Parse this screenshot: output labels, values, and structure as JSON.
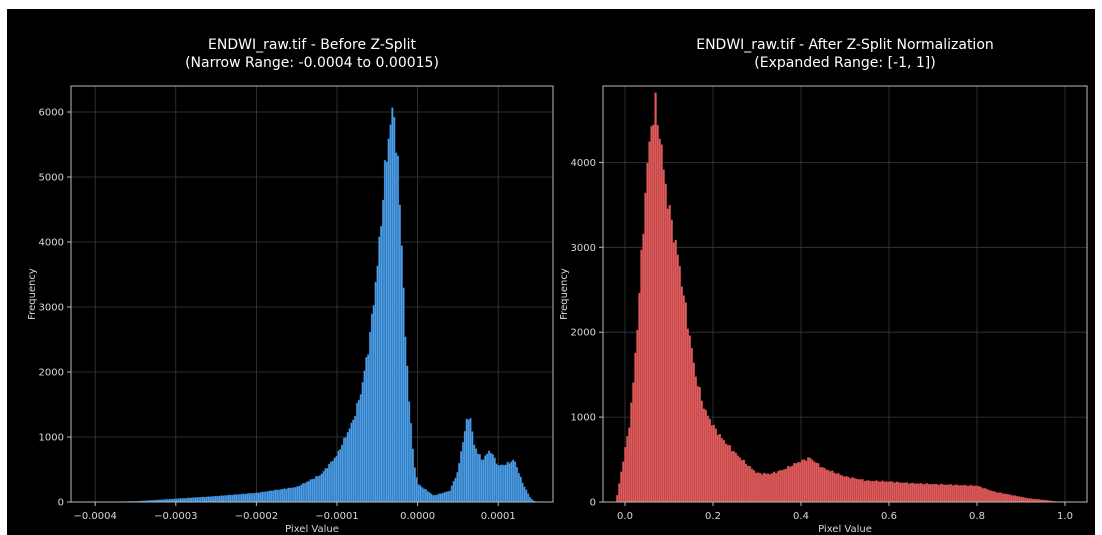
{
  "chart_data": [
    {
      "type": "bar",
      "title": "ENDWI_raw.tif - Before Z-Split",
      "subtitle": "(Narrow Range: -0.0004 to 0.00015)",
      "xlabel": "Pixel Value",
      "ylabel": "Frequency",
      "xlim": [
        -0.00043,
        0.000168
      ],
      "ylim": [
        0,
        6400
      ],
      "xticks": [
        -0.0004,
        -0.0003,
        -0.0002,
        -0.0001,
        0.0,
        0.0001
      ],
      "xtick_labels": [
        "−0.0004",
        "−0.0003",
        "−0.0002",
        "−0.0001",
        "0.0000",
        "0.0001"
      ],
      "yticks": [
        0,
        1000,
        2000,
        3000,
        4000,
        5000,
        6000
      ],
      "ytick_labels": [
        "0",
        "1000",
        "2000",
        "3000",
        "4000",
        "5000",
        "6000"
      ],
      "grid": true,
      "color": "#4f9fe6",
      "edgecolor": "#1d5a96",
      "x": [
        -0.00035,
        -0.0003,
        -0.00025,
        -0.0002,
        -0.00015,
        -0.00012,
        -0.0001,
        -8e-05,
        -7e-05,
        -6e-05,
        -5e-05,
        -4.5e-05,
        -4e-05,
        -3.5e-05,
        -3e-05,
        -2.5e-05,
        -2e-05,
        -1.5e-05,
        -1e-05,
        -5e-06,
        0.0,
        2e-05,
        4e-05,
        5e-05,
        6e-05,
        6.5e-05,
        7e-05,
        8e-05,
        9e-05,
        0.0001,
        0.00011,
        0.00012,
        0.00013,
        0.00014,
        0.000145
      ],
      "values": [
        10,
        50,
        90,
        140,
        230,
        420,
        720,
        1250,
        1700,
        2450,
        3600,
        4350,
        5150,
        5700,
        6080,
        5300,
        4100,
        2500,
        1500,
        650,
        280,
        100,
        170,
        470,
        1200,
        1350,
        880,
        640,
        800,
        560,
        580,
        650,
        300,
        60,
        10
      ]
    },
    {
      "type": "bar",
      "title": "ENDWI_raw.tif - After Z-Split Normalization",
      "subtitle": "(Expanded Range: [-1, 1])",
      "xlabel": "Pixel Value",
      "ylabel": "Frequency",
      "xlim": [
        -0.05,
        1.05
      ],
      "ylim": [
        0,
        4900
      ],
      "xticks": [
        0.0,
        0.2,
        0.4,
        0.6,
        0.8,
        1.0
      ],
      "xtick_labels": [
        "0.0",
        "0.2",
        "0.4",
        "0.6",
        "0.8",
        "1.0"
      ],
      "yticks": [
        0,
        1000,
        2000,
        3000,
        4000
      ],
      "ytick_labels": [
        "0",
        "1000",
        "2000",
        "3000",
        "4000"
      ],
      "grid": true,
      "color": "#e05c5c",
      "edgecolor": "#a13838",
      "x": [
        0.0,
        0.01,
        0.02,
        0.03,
        0.04,
        0.05,
        0.06,
        0.07,
        0.08,
        0.09,
        0.1,
        0.12,
        0.14,
        0.16,
        0.18,
        0.2,
        0.22,
        0.25,
        0.28,
        0.3,
        0.33,
        0.36,
        0.39,
        0.42,
        0.45,
        0.5,
        0.55,
        0.6,
        0.65,
        0.7,
        0.75,
        0.8,
        0.84,
        0.88,
        0.92,
        0.96,
        0.98
      ],
      "values": [
        600,
        900,
        1450,
        2200,
        3100,
        3900,
        4450,
        4650,
        4300,
        3800,
        3450,
        2900,
        2200,
        1500,
        1100,
        900,
        750,
        580,
        430,
        340,
        330,
        380,
        460,
        520,
        400,
        300,
        250,
        240,
        220,
        210,
        200,
        190,
        120,
        80,
        40,
        20,
        5
      ]
    }
  ]
}
